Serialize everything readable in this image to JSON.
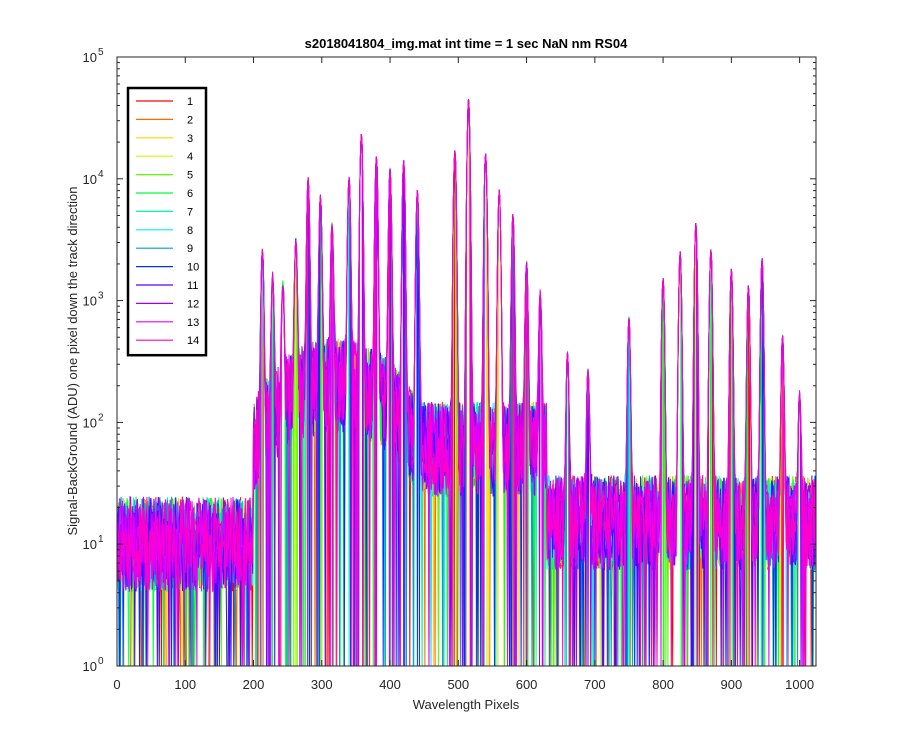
{
  "chart_data": {
    "type": "line",
    "title": "s2018041804_img.mat int time = 1 sec  NaN nm RS04",
    "xlabel": "Wavelength Pixels",
    "ylabel": "Signal-BackGround (ADU) one pixel down the track direction",
    "xlim": [
      0,
      1024
    ],
    "ylim": [
      1,
      100000
    ],
    "yscale": "log",
    "grid": false,
    "legend_position": "top-left",
    "x_ticks": [
      {
        "value": 0,
        "label": "0"
      },
      {
        "value": 100,
        "label": "100"
      },
      {
        "value": 200,
        "label": "200"
      },
      {
        "value": 300,
        "label": "300"
      },
      {
        "value": 400,
        "label": "400"
      },
      {
        "value": 500,
        "label": "500"
      },
      {
        "value": 600,
        "label": "600"
      },
      {
        "value": 700,
        "label": "700"
      },
      {
        "value": 800,
        "label": "800"
      },
      {
        "value": 900,
        "label": "900"
      },
      {
        "value": 1000,
        "label": "1000"
      }
    ],
    "y_ticks": [
      {
        "value": 1,
        "base": "10",
        "exp": "0"
      },
      {
        "value": 10,
        "base": "10",
        "exp": "1"
      },
      {
        "value": 100,
        "base": "10",
        "exp": "2"
      },
      {
        "value": 1000,
        "base": "10",
        "exp": "3"
      },
      {
        "value": 10000,
        "base": "10",
        "exp": "4"
      },
      {
        "value": 100000,
        "base": "10",
        "exp": "5"
      }
    ],
    "series": [
      {
        "name": "1",
        "color": "#ff0000"
      },
      {
        "name": "2",
        "color": "#ff6a00"
      },
      {
        "name": "3",
        "color": "#ffd400"
      },
      {
        "name": "4",
        "color": "#c8ff00"
      },
      {
        "name": "5",
        "color": "#5aff00"
      },
      {
        "name": "6",
        "color": "#00ff3c"
      },
      {
        "name": "7",
        "color": "#00ffaa"
      },
      {
        "name": "8",
        "color": "#00f0ff"
      },
      {
        "name": "9",
        "color": "#00a0c8"
      },
      {
        "name": "10",
        "color": "#0030ff"
      },
      {
        "name": "11",
        "color": "#5a00ff"
      },
      {
        "name": "12",
        "color": "#a000ff"
      },
      {
        "name": "13",
        "color": "#e600ff"
      },
      {
        "name": "14",
        "color": "#ff00c8"
      }
    ],
    "profile": {
      "baseline_left": {
        "x_range": [
          0,
          200
        ],
        "value": 10
      },
      "baseline_middle": {
        "x_range": [
          440,
          630
        ],
        "value": 60
      },
      "baseline_right": {
        "x_range": [
          630,
          1024
        ],
        "value": 15
      },
      "peaks": [
        {
          "x": 213,
          "y": 2500
        },
        {
          "x": 228,
          "y": 1500
        },
        {
          "x": 243,
          "y": 1200
        },
        {
          "x": 262,
          "y": 3000
        },
        {
          "x": 280,
          "y": 10000
        },
        {
          "x": 298,
          "y": 7000
        },
        {
          "x": 315,
          "y": 4000
        },
        {
          "x": 340,
          "y": 10000
        },
        {
          "x": 358,
          "y": 23000
        },
        {
          "x": 380,
          "y": 15000
        },
        {
          "x": 400,
          "y": 12000
        },
        {
          "x": 420,
          "y": 14000
        },
        {
          "x": 440,
          "y": 8000
        },
        {
          "x": 495,
          "y": 17000
        },
        {
          "x": 515,
          "y": 45000
        },
        {
          "x": 540,
          "y": 16000
        },
        {
          "x": 560,
          "y": 8000
        },
        {
          "x": 580,
          "y": 5000
        },
        {
          "x": 600,
          "y": 2000
        },
        {
          "x": 620,
          "y": 1100
        },
        {
          "x": 660,
          "y": 350
        },
        {
          "x": 690,
          "y": 250
        },
        {
          "x": 750,
          "y": 700
        },
        {
          "x": 800,
          "y": 1500
        },
        {
          "x": 825,
          "y": 2500
        },
        {
          "x": 848,
          "y": 4300
        },
        {
          "x": 870,
          "y": 2600
        },
        {
          "x": 900,
          "y": 1800
        },
        {
          "x": 925,
          "y": 1300
        },
        {
          "x": 945,
          "y": 2200
        },
        {
          "x": 975,
          "y": 500
        },
        {
          "x": 1000,
          "y": 150
        }
      ]
    }
  }
}
